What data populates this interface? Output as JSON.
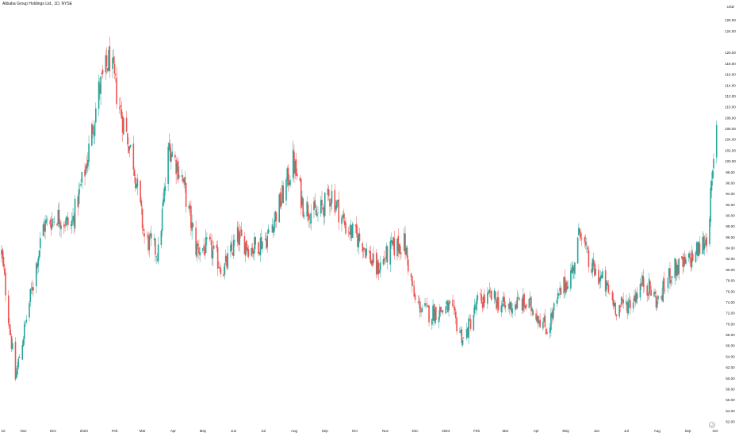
{
  "header": {
    "symbol_title": "Alibaba Group Holdings Ltd., 1D, NYSE",
    "currency": "USD"
  },
  "colors": {
    "up": "#26a69a",
    "down": "#ef5350",
    "text": "#131722",
    "background": "#ffffff"
  },
  "icons": {
    "reset_scale": "reset-scale-icon"
  },
  "chart_data": {
    "type": "candlestick",
    "title": "Alibaba Group Holdings Ltd., 1D, NYSE",
    "ylabel": "USD",
    "ylim": [
      52,
      128
    ],
    "yticks": [
      "52.00",
      "54.00",
      "56.00",
      "58.00",
      "60.00",
      "62.00",
      "64.00",
      "66.00",
      "68.00",
      "70.00",
      "72.00",
      "74.00",
      "76.00",
      "78.00",
      "80.00",
      "82.00",
      "84.00",
      "86.00",
      "88.00",
      "90.00",
      "92.00",
      "94.00",
      "96.00",
      "98.00",
      "100.00",
      "102.00",
      "104.00",
      "106.00",
      "108.00",
      "110.00",
      "112.00",
      "114.00",
      "116.00",
      "118.00",
      "120.00",
      "124.00",
      "126.00"
    ],
    "xticks": [
      "10",
      "Nov",
      "Dec",
      "2023",
      "Feb",
      "Mar",
      "Apr",
      "May",
      "Jun",
      "Jul",
      "Aug",
      "Sep",
      "Oct",
      "Nov",
      "Dec",
      "2024",
      "Feb",
      "Mar",
      "Apr",
      "May",
      "Jun",
      "Jul",
      "Aug",
      "Sep",
      "Oct"
    ],
    "grid": false,
    "legend": "none",
    "series": [
      {
        "period": "1D",
        "keypoints": [
          [
            "2022-10-10",
            83
          ],
          [
            "2022-10-24",
            60
          ],
          [
            "2022-11-07",
            74
          ],
          [
            "2022-11-21",
            88
          ],
          [
            "2022-12-05",
            90
          ],
          [
            "2022-12-19",
            88
          ],
          [
            "2023-01-03",
            99
          ],
          [
            "2023-01-16",
            113
          ],
          [
            "2023-01-27",
            119
          ],
          [
            "2023-02-06",
            110
          ],
          [
            "2023-02-20",
            100
          ],
          [
            "2023-03-03",
            86
          ],
          [
            "2023-03-17",
            83
          ],
          [
            "2023-03-28",
            103
          ],
          [
            "2023-04-10",
            97
          ],
          [
            "2023-04-24",
            84
          ],
          [
            "2023-05-08",
            84
          ],
          [
            "2023-05-22",
            80
          ],
          [
            "2023-06-05",
            86
          ],
          [
            "2023-06-19",
            84
          ],
          [
            "2023-07-05",
            86
          ],
          [
            "2023-07-21",
            94
          ],
          [
            "2023-07-31",
            100
          ],
          [
            "2023-08-10",
            92
          ],
          [
            "2023-08-24",
            90
          ],
          [
            "2023-09-08",
            94
          ],
          [
            "2023-09-22",
            88
          ],
          [
            "2023-10-09",
            85
          ],
          [
            "2023-10-23",
            80
          ],
          [
            "2023-11-08",
            84
          ],
          [
            "2023-11-20",
            85
          ],
          [
            "2023-12-01",
            74
          ],
          [
            "2023-12-15",
            72
          ],
          [
            "2024-01-05",
            73
          ],
          [
            "2024-01-19",
            67
          ],
          [
            "2024-02-02",
            74
          ],
          [
            "2024-02-16",
            75
          ],
          [
            "2024-03-01",
            73
          ],
          [
            "2024-03-15",
            74
          ],
          [
            "2024-03-29",
            73
          ],
          [
            "2024-04-12",
            69
          ],
          [
            "2024-04-26",
            76
          ],
          [
            "2024-05-08",
            80
          ],
          [
            "2024-05-16",
            88
          ],
          [
            "2024-05-24",
            81
          ],
          [
            "2024-06-07",
            78
          ],
          [
            "2024-06-21",
            73
          ],
          [
            "2024-07-05",
            74
          ],
          [
            "2024-07-19",
            78
          ],
          [
            "2024-08-02",
            74
          ],
          [
            "2024-08-16",
            80
          ],
          [
            "2024-08-30",
            81
          ],
          [
            "2024-09-13",
            84
          ],
          [
            "2024-09-20",
            86
          ],
          [
            "2024-09-24",
            93
          ],
          [
            "2024-09-26",
            97
          ],
          [
            "2024-09-30",
            106
          ]
        ]
      }
    ]
  }
}
